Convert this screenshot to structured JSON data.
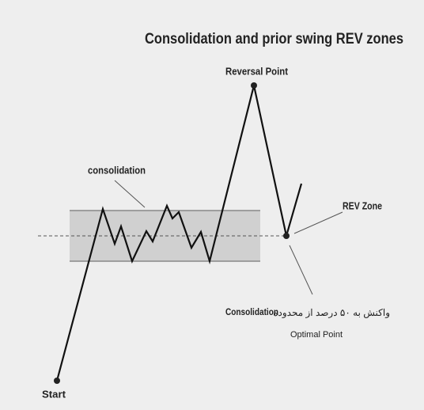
{
  "title": "Consolidation and prior swing REV zones",
  "labels": {
    "reversal_point": "Reversal Point",
    "consolidation": "consolidation",
    "rev_zone": "REV Zone",
    "start": "Start"
  },
  "note": {
    "bold": "Consolidation",
    "text": "واکنش به ۵۰ درصد از محدوده",
    "caption": "Optimal Point"
  }
}
